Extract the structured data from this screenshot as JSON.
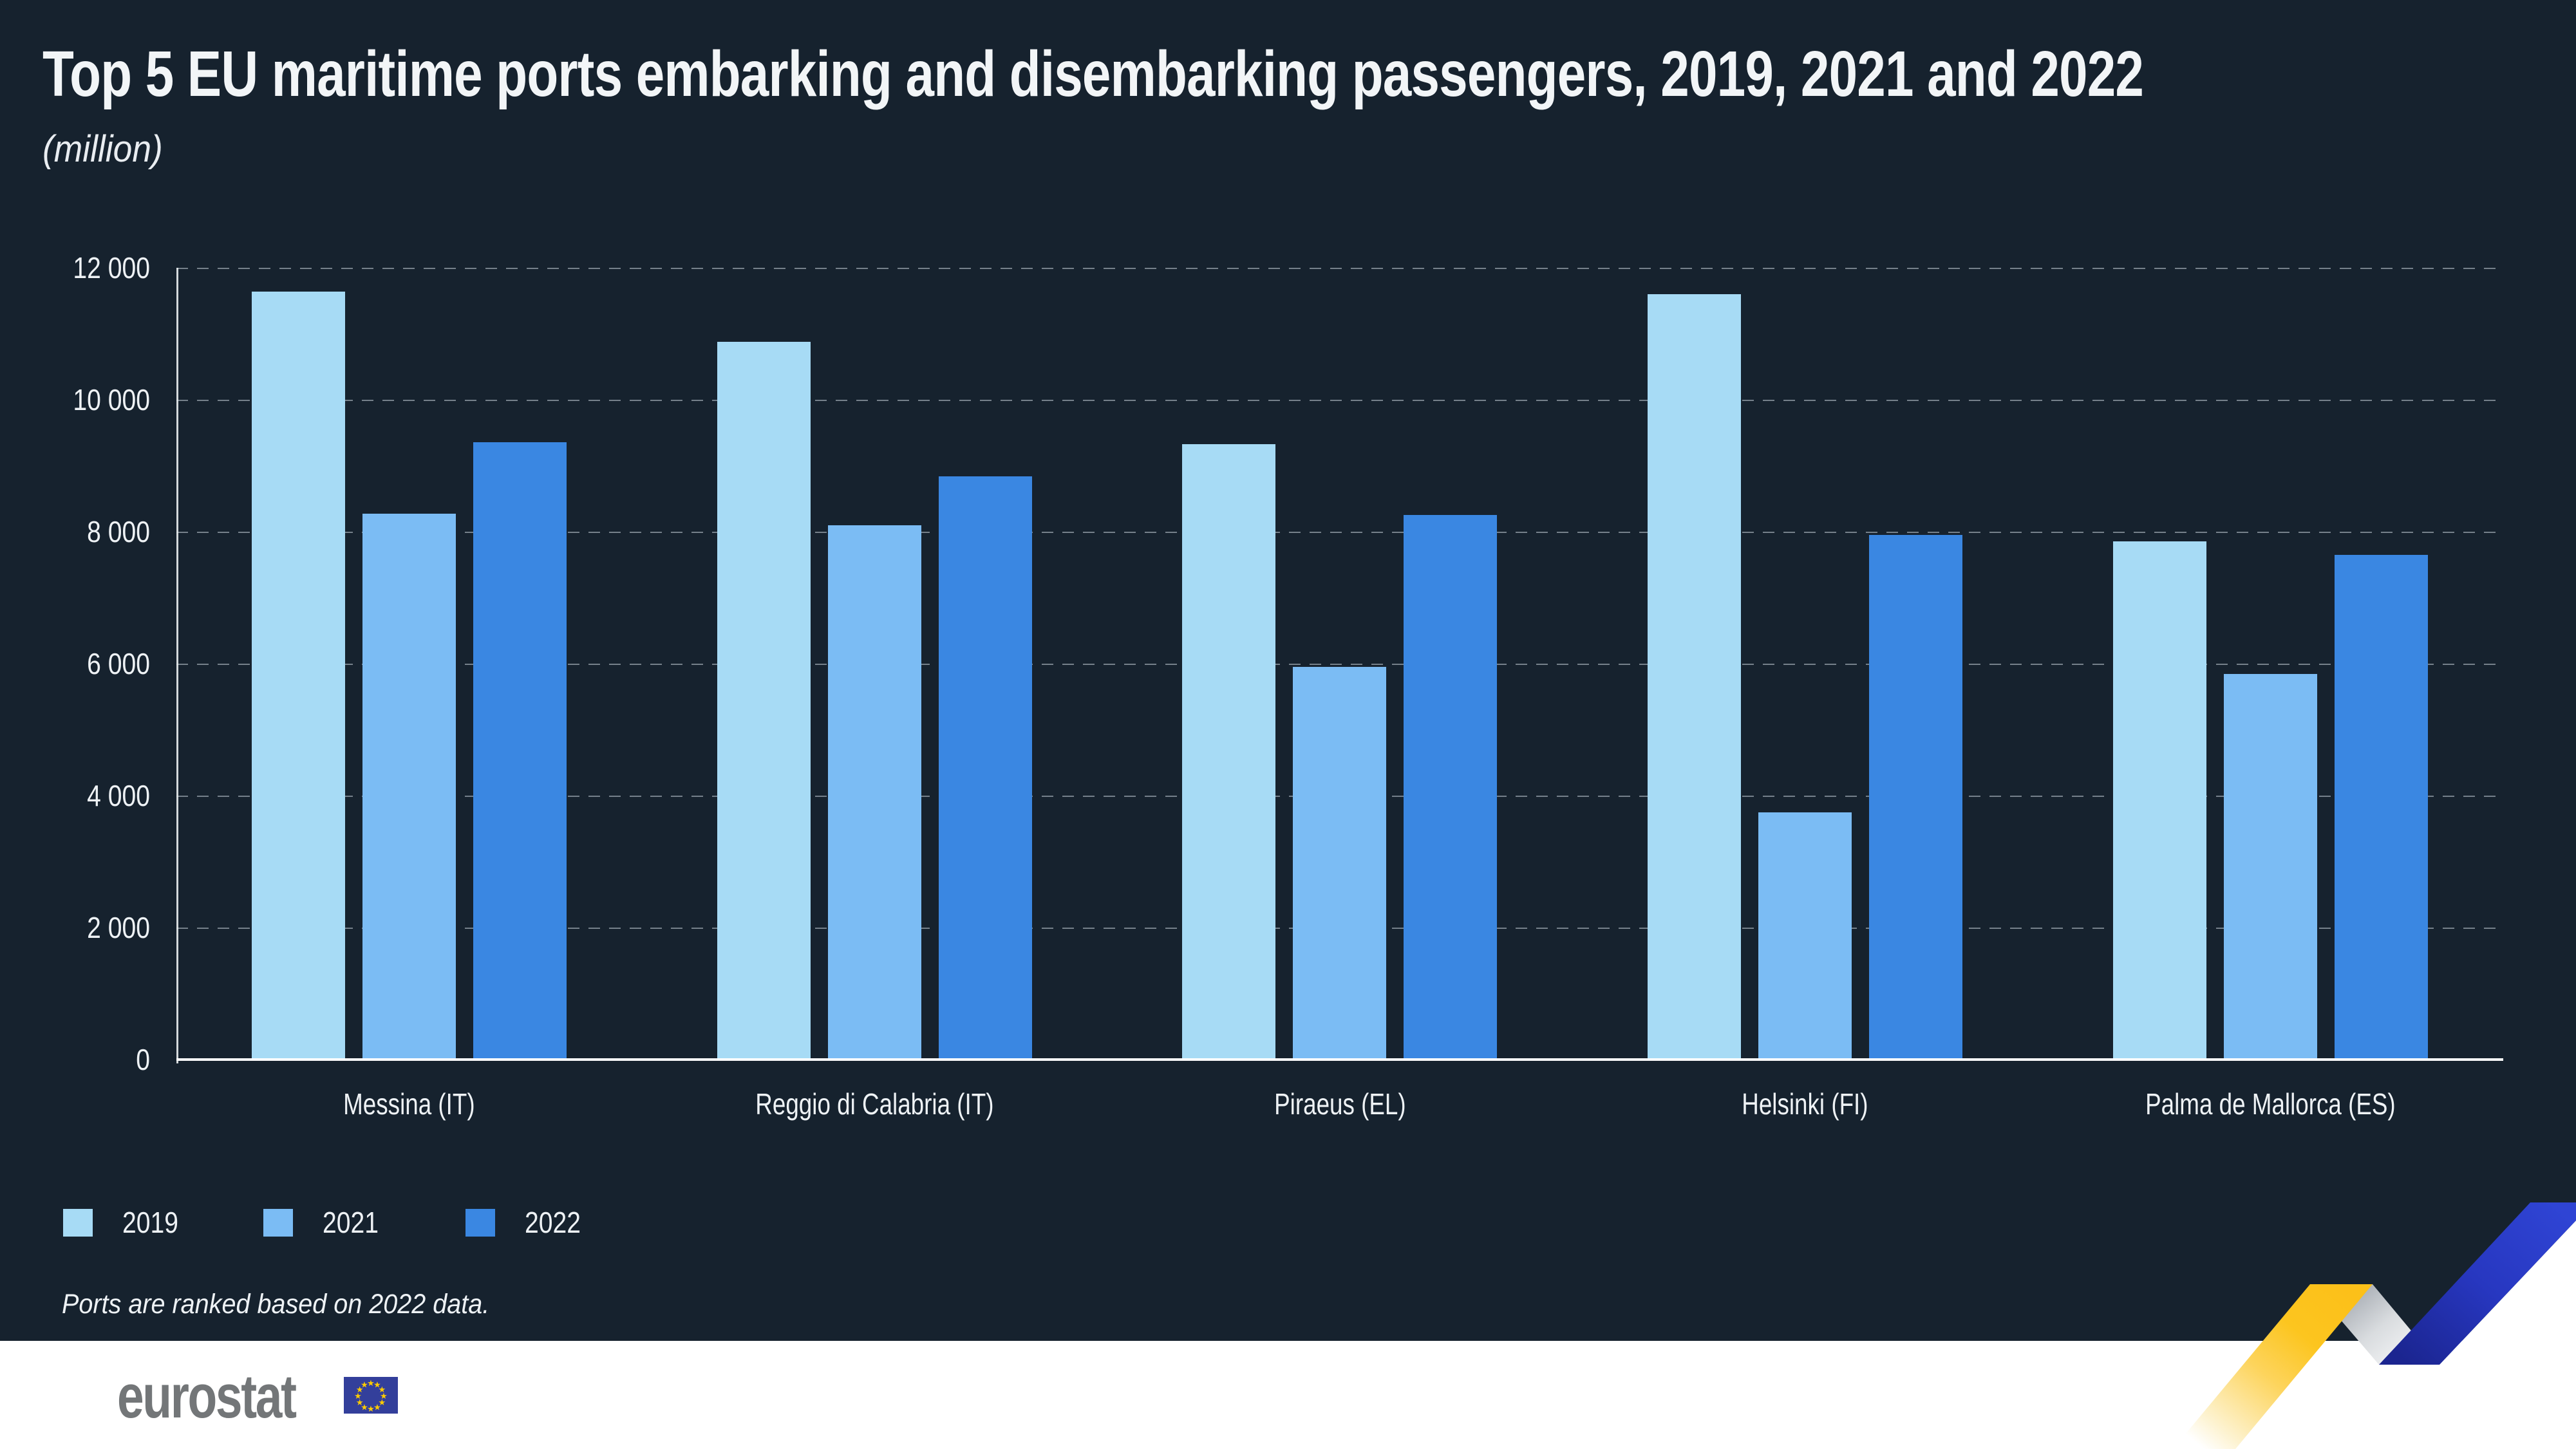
{
  "title": "Top 5 EU maritime ports embarking and disembarking passengers, 2019, 2021 and 2022",
  "subtitle": "(million)",
  "footnote": "Ports are ranked based on 2022 data.",
  "branding": {
    "logo_text": "eurostat"
  },
  "colors": {
    "background": "#16222e",
    "axis": "#ffffff",
    "text": "#eef2f5",
    "footer_bg": "#ffffff",
    "logo_gray": "#737678",
    "flag_blue": "#333f9b",
    "star_yellow": "#ffcc00",
    "zigzag_yellow": "#fcc019",
    "zigzag_gray": "#9aa0a8",
    "zigzag_blue": "#2737c0"
  },
  "chart_data": {
    "type": "bar",
    "title": "Top 5 EU maritime ports embarking and disembarking passengers, 2019, 2021 and 2022",
    "unit_label": "(million)",
    "categories": [
      "Messina (IT)",
      "Reggio di Calabria (IT)",
      "Piraeus (EL)",
      "Helsinki (FI)",
      "Palma de Mallorca (ES)"
    ],
    "series": [
      {
        "name": "2019",
        "color": "#a7dbf5",
        "values": [
          11640,
          10880,
          9330,
          11600,
          7850
        ]
      },
      {
        "name": "2021",
        "color": "#7bbcf4",
        "values": [
          8270,
          8100,
          5950,
          3750,
          5840
        ]
      },
      {
        "name": "2022",
        "color": "#3a87e2",
        "values": [
          9360,
          8840,
          8250,
          7950,
          7650
        ]
      }
    ],
    "ylim": [
      0,
      12000
    ],
    "y_ticks": [
      "12 000",
      "10 000",
      "8 000",
      "6 000",
      "4 000",
      "2 000",
      "0"
    ],
    "grid": "dashed-horizontal",
    "legend_position": "bottom-left",
    "note": "Ports are ranked based on 2022 data."
  }
}
